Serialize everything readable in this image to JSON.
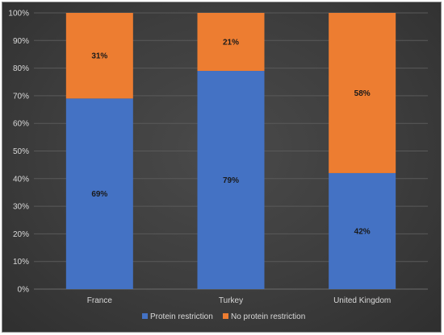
{
  "chart_data": {
    "type": "bar",
    "stacked": true,
    "categories": [
      "France",
      "Turkey",
      "United Kingdom"
    ],
    "series": [
      {
        "name": "Protein restriction",
        "values": [
          69,
          79,
          42
        ],
        "labels": [
          "69%",
          "79%",
          "42%"
        ],
        "color": "#4472c4"
      },
      {
        "name": "No protein restriction",
        "values": [
          31,
          21,
          58
        ],
        "labels": [
          "31%",
          "21%",
          "58%"
        ],
        "color": "#ed7d31"
      }
    ],
    "y_ticks": [
      "0%",
      "10%",
      "20%",
      "30%",
      "40%",
      "50%",
      "60%",
      "70%",
      "80%",
      "90%",
      "100%"
    ],
    "ylim": [
      0,
      100
    ],
    "grid": true,
    "legend_position": "bottom",
    "title": "",
    "xlabel": "",
    "ylabel": ""
  }
}
